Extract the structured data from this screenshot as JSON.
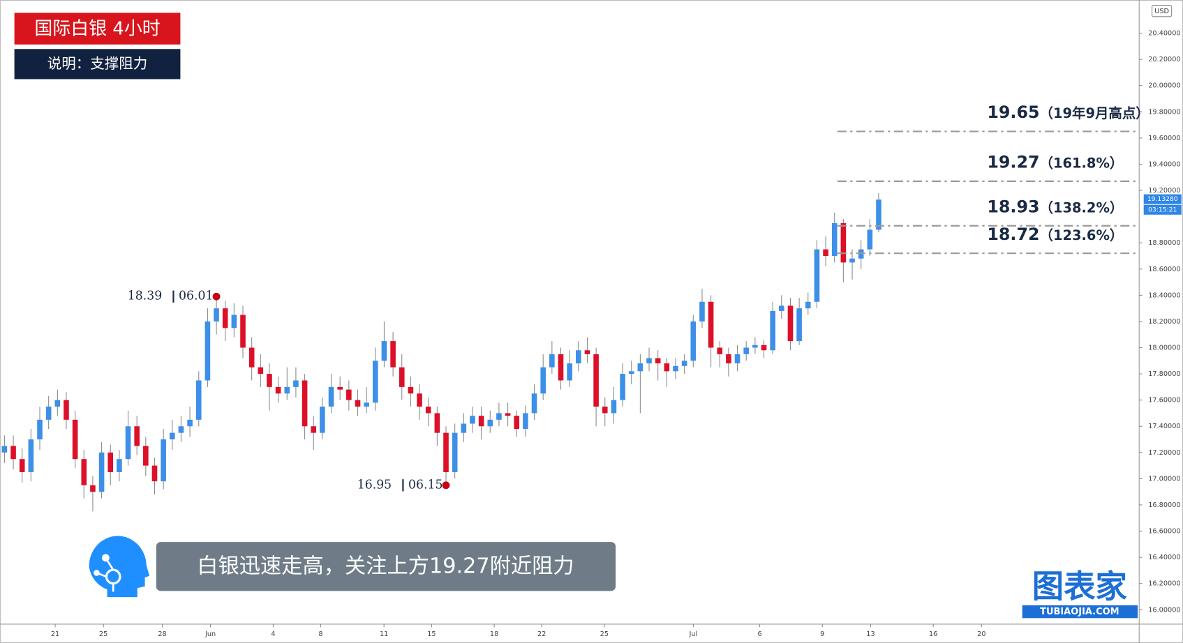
{
  "chart_data": {
    "type": "candlestick",
    "title": "国际白银 4小时",
    "subtitle": "说明：支撑阻力",
    "caption": "白银迅速走高，关注上方19.27附近阻力",
    "currency": "USD",
    "logo": "图表家",
    "logo_sub": "TUBIAOJIA.COM",
    "up_color": "#3d8fe8",
    "down_color": "#dc1028",
    "grid": false,
    "xlim": [
      0,
      129
    ],
    "xticks": [
      {
        "value": 6.24,
        "label": "21"
      },
      {
        "value": 11.7,
        "label": "25"
      },
      {
        "value": 18.37,
        "label": "28"
      },
      {
        "value": 23.83,
        "label": "Jun"
      },
      {
        "value": 30.93,
        "label": "4"
      },
      {
        "value": 36.31,
        "label": "8"
      },
      {
        "value": 43.48,
        "label": "11"
      },
      {
        "value": 48.87,
        "label": "15"
      },
      {
        "value": 55.96,
        "label": "18"
      },
      {
        "value": 61.34,
        "label": "22"
      },
      {
        "value": 68.43,
        "label": "25"
      },
      {
        "value": 78.51,
        "label": "Jul"
      },
      {
        "value": 86.03,
        "label": "6"
      },
      {
        "value": 93.12,
        "label": "9"
      },
      {
        "value": 98.59,
        "label": "13"
      },
      {
        "value": 105.68,
        "label": "16"
      },
      {
        "value": 111.14,
        "label": "20"
      }
    ],
    "ylim": [
      15.89,
      20.653
    ],
    "yticks": [
      {
        "value": 16.0,
        "label": "16.00000"
      },
      {
        "value": 16.2,
        "label": "16.20000"
      },
      {
        "value": 16.4,
        "label": "16.40000"
      },
      {
        "value": 16.6,
        "label": "16.60000"
      },
      {
        "value": 16.8,
        "label": "16.80000"
      },
      {
        "value": 17.0,
        "label": "17.00000"
      },
      {
        "value": 17.2,
        "label": "17.20000"
      },
      {
        "value": 17.4,
        "label": "17.40000"
      },
      {
        "value": 17.6,
        "label": "17.60000"
      },
      {
        "value": 17.8,
        "label": "17.80000"
      },
      {
        "value": 18.0,
        "label": "18.00000"
      },
      {
        "value": 18.2,
        "label": "18.20000"
      },
      {
        "value": 18.4,
        "label": "18.40000"
      },
      {
        "value": 18.6,
        "label": "18.60000"
      },
      {
        "value": 18.8,
        "label": "18.80000"
      },
      {
        "value": 19.2,
        "label": "19.20000"
      },
      {
        "value": 19.4,
        "label": "19.40000"
      },
      {
        "value": 19.6,
        "label": "19.60000"
      },
      {
        "value": 19.8,
        "label": "19.80000"
      },
      {
        "value": 20.0,
        "label": "20.00000"
      },
      {
        "value": 20.2,
        "label": "20.20000"
      },
      {
        "value": 20.4,
        "label": "20.40000"
      }
    ],
    "open": [
      17.2,
      17.25,
      17.15,
      17.05,
      17.3,
      17.45,
      17.55,
      17.6,
      17.45,
      17.15,
      16.95,
      16.9,
      17.2,
      17.05,
      17.15,
      17.4,
      17.25,
      17.1,
      16.98,
      17.3,
      17.35,
      17.4,
      17.45,
      17.75,
      18.2,
      18.3,
      18.15,
      18.25,
      18.0,
      17.85,
      17.8,
      17.7,
      17.65,
      17.7,
      17.75,
      17.4,
      17.35,
      17.55,
      17.7,
      17.68,
      17.6,
      17.55,
      17.58,
      17.9,
      18.05,
      17.85,
      17.7,
      17.65,
      17.55,
      17.5,
      17.35,
      17.05,
      17.35,
      17.42,
      17.48,
      17.4,
      17.45,
      17.5,
      17.48,
      17.38,
      17.5,
      17.65,
      17.85,
      17.95,
      17.75,
      17.88,
      17.98,
      17.95,
      17.55,
      17.5,
      17.6,
      17.8,
      17.82,
      17.88,
      17.92,
      17.88,
      17.82,
      17.86,
      17.9,
      18.2,
      18.35,
      18.0,
      17.95,
      17.88,
      17.95,
      18.0,
      18.02,
      17.98,
      18.28,
      18.32,
      18.05,
      18.3,
      18.35,
      18.75,
      18.7,
      18.95,
      18.65,
      18.68,
      18.75,
      18.9
    ],
    "high": [
      17.33,
      17.33,
      17.23,
      17.38,
      17.55,
      17.63,
      17.68,
      17.66,
      17.52,
      17.22,
      17.02,
      17.28,
      17.26,
      17.22,
      17.52,
      17.48,
      17.32,
      17.16,
      17.38,
      17.45,
      17.48,
      17.55,
      17.82,
      18.3,
      18.39,
      18.36,
      18.34,
      18.32,
      18.08,
      17.95,
      17.88,
      17.78,
      17.85,
      17.85,
      17.8,
      17.48,
      17.62,
      17.8,
      17.78,
      17.75,
      17.68,
      17.7,
      18.0,
      18.2,
      18.12,
      17.95,
      17.78,
      17.72,
      17.62,
      17.55,
      17.4,
      17.42,
      17.5,
      17.55,
      17.55,
      17.52,
      17.58,
      17.58,
      17.52,
      17.56,
      17.72,
      17.95,
      18.05,
      18.0,
      17.98,
      18.05,
      18.08,
      18.0,
      17.62,
      17.7,
      17.88,
      17.9,
      17.95,
      18.0,
      17.98,
      17.92,
      17.92,
      17.95,
      18.25,
      18.45,
      18.4,
      18.05,
      18.0,
      18.02,
      18.05,
      18.08,
      18.06,
      18.35,
      18.4,
      18.38,
      18.38,
      18.42,
      18.82,
      18.85,
      19.03,
      18.98,
      18.75,
      18.82,
      18.98,
      19.18
    ],
    "low": [
      17.12,
      17.07,
      16.97,
      16.98,
      17.22,
      17.38,
      17.48,
      17.38,
      17.08,
      16.85,
      16.75,
      16.85,
      16.95,
      16.98,
      17.1,
      17.18,
      17.02,
      16.88,
      16.92,
      17.22,
      17.28,
      17.32,
      17.4,
      17.7,
      18.1,
      18.05,
      18.08,
      17.92,
      17.75,
      17.7,
      17.52,
      17.58,
      17.6,
      17.62,
      17.3,
      17.22,
      17.3,
      17.5,
      17.6,
      17.52,
      17.48,
      17.5,
      17.52,
      17.85,
      17.78,
      17.6,
      17.55,
      17.45,
      17.4,
      17.25,
      16.95,
      17.0,
      17.28,
      17.35,
      17.3,
      17.35,
      17.4,
      17.4,
      17.32,
      17.32,
      17.45,
      17.6,
      17.8,
      17.68,
      17.7,
      17.82,
      17.88,
      17.4,
      17.4,
      17.42,
      17.55,
      17.72,
      17.5,
      17.82,
      17.75,
      17.7,
      17.76,
      17.8,
      17.85,
      18.15,
      17.85,
      17.85,
      17.78,
      17.82,
      17.9,
      17.95,
      17.92,
      17.95,
      18.22,
      17.98,
      18.02,
      18.25,
      18.3,
      18.62,
      18.65,
      18.5,
      18.52,
      18.6,
      18.7,
      18.88
    ],
    "close": [
      17.25,
      17.15,
      17.05,
      17.3,
      17.45,
      17.55,
      17.6,
      17.45,
      17.15,
      16.95,
      16.9,
      17.2,
      17.05,
      17.15,
      17.4,
      17.25,
      17.1,
      16.98,
      17.3,
      17.35,
      17.4,
      17.45,
      17.75,
      18.2,
      18.3,
      18.15,
      18.25,
      18.0,
      17.85,
      17.8,
      17.7,
      17.65,
      17.7,
      17.75,
      17.4,
      17.35,
      17.55,
      17.7,
      17.68,
      17.6,
      17.55,
      17.58,
      17.9,
      18.05,
      17.85,
      17.7,
      17.65,
      17.55,
      17.5,
      17.35,
      17.05,
      17.35,
      17.42,
      17.48,
      17.4,
      17.45,
      17.5,
      17.48,
      17.38,
      17.5,
      17.65,
      17.85,
      17.95,
      17.75,
      17.88,
      17.98,
      17.95,
      17.55,
      17.5,
      17.6,
      17.8,
      17.82,
      17.88,
      17.92,
      17.88,
      17.82,
      17.86,
      17.9,
      18.2,
      18.35,
      18.0,
      17.95,
      17.88,
      17.95,
      18.0,
      18.02,
      17.98,
      18.28,
      18.32,
      18.05,
      18.3,
      18.35,
      18.75,
      18.7,
      18.95,
      18.65,
      18.68,
      18.75,
      18.9,
      19.13
    ],
    "markers": [
      {
        "x": 24.5,
        "value": 18.39,
        "date": "06.01"
      },
      {
        "x": 50.5,
        "value": 16.95,
        "date": "06.15"
      }
    ],
    "levels": [
      {
        "value": 19.65,
        "note": "（19年9月高点）"
      },
      {
        "value": 19.27,
        "note": "（161.8%）"
      },
      {
        "value": 18.93,
        "note": "（138.2%）"
      },
      {
        "value": 18.72,
        "note": "（123.6%）"
      }
    ],
    "last_price": {
      "value": 19.1328,
      "label": "19.13280",
      "timer": "03:15:21"
    }
  }
}
